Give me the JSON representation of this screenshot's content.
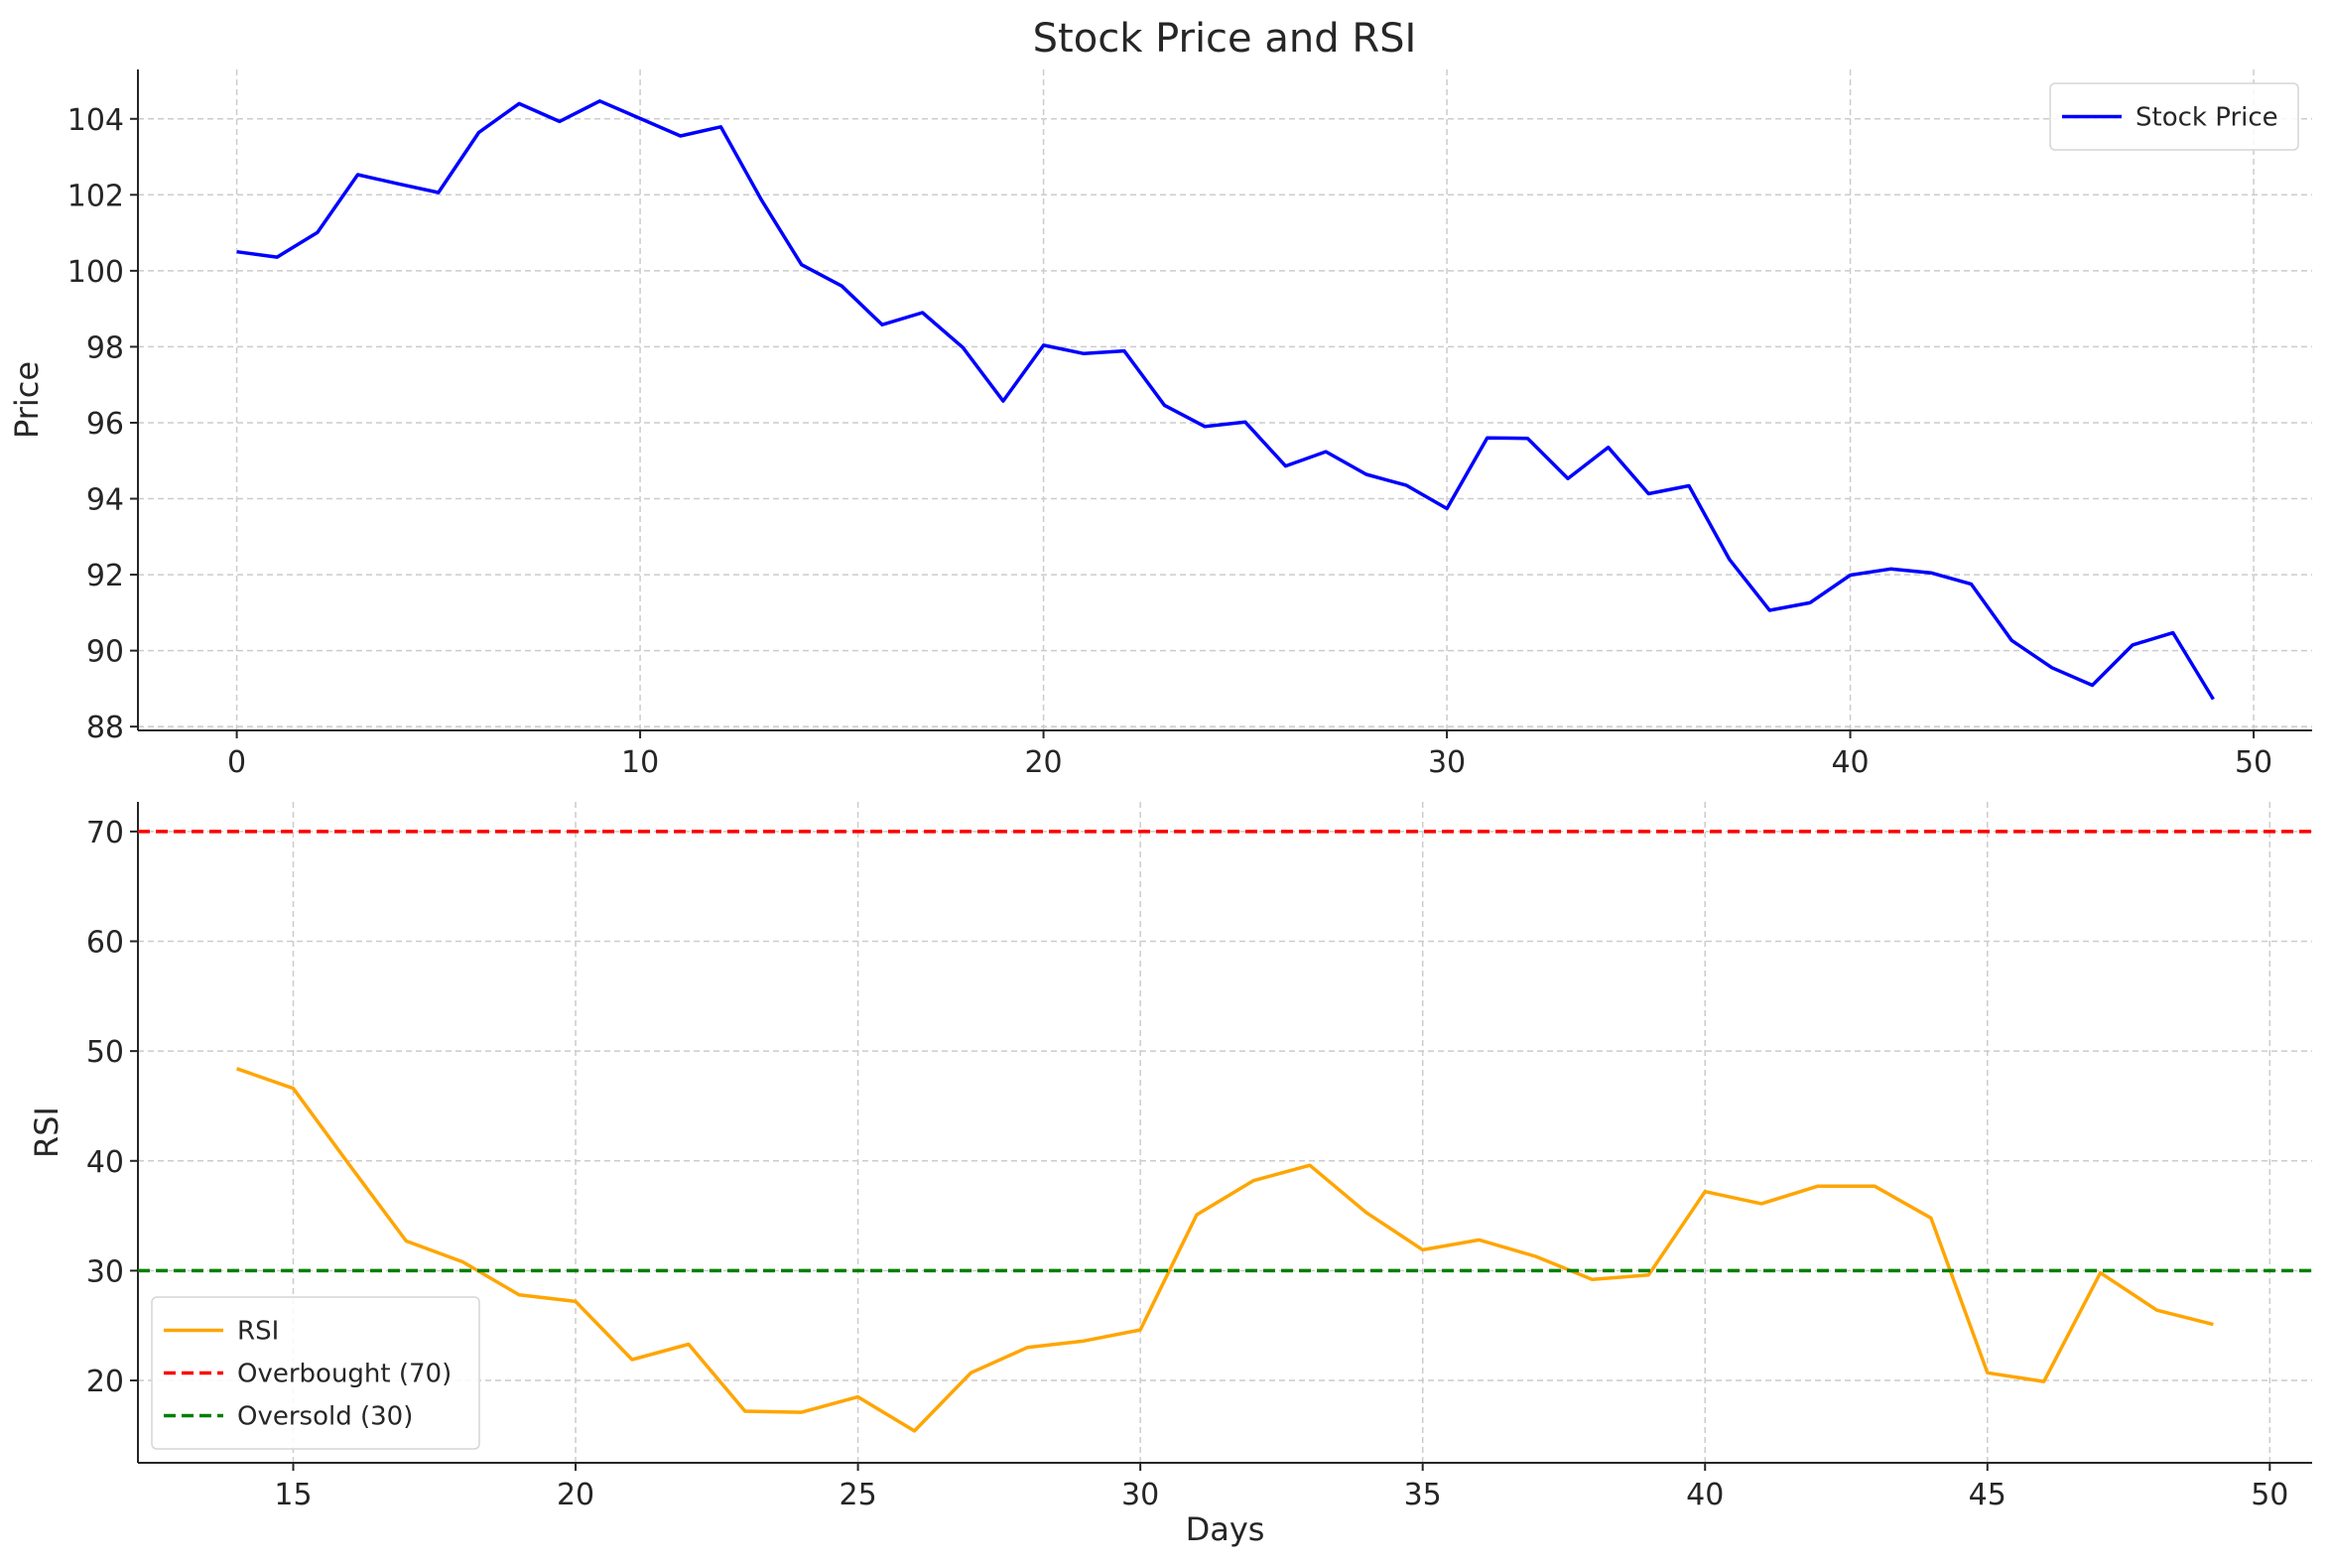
{
  "title": "Stock Price and RSI",
  "chart_data": [
    {
      "type": "line",
      "title": "Stock Price and RSI",
      "xlabel": "",
      "ylabel": "Price",
      "xlim": [
        -2.45,
        51.45
      ],
      "ylim": [
        87.9,
        105.3
      ],
      "x_ticks": [
        0,
        10,
        20,
        30,
        40,
        50
      ],
      "y_ticks": [
        88,
        90,
        92,
        94,
        96,
        98,
        100,
        102,
        104
      ],
      "grid": true,
      "legend_position": "top-right",
      "series": [
        {
          "name": "Stock Price",
          "color": "#0000ff",
          "x": [
            0,
            1,
            2,
            3,
            4,
            5,
            6,
            7,
            8,
            9,
            10,
            11,
            12,
            13,
            14,
            15,
            16,
            17,
            18,
            19,
            20,
            21,
            22,
            23,
            24,
            25,
            26,
            27,
            28,
            29,
            30,
            31,
            32,
            33,
            34,
            35,
            36,
            37,
            38,
            39,
            40,
            41,
            42,
            43,
            44,
            45,
            46,
            47,
            48,
            49
          ],
          "values": [
            100.5,
            100.36,
            101.01,
            102.53,
            102.29,
            102.06,
            103.64,
            104.4,
            103.93,
            104.47,
            104.01,
            103.55,
            103.79,
            101.88,
            100.16,
            99.6,
            98.58,
            98.9,
            97.98,
            96.57,
            98.04,
            97.82,
            97.89,
            96.46,
            95.9,
            96.02,
            94.86,
            95.24,
            94.64,
            94.35,
            93.74,
            95.6,
            95.59,
            94.53,
            95.35,
            94.13,
            94.34,
            92.41,
            91.06,
            91.26,
            91.99,
            92.15,
            92.05,
            91.75,
            90.27,
            89.55,
            89.09,
            90.15,
            90.47,
            88.72
          ]
        }
      ]
    },
    {
      "type": "line",
      "xlabel": "Days",
      "ylabel": "RSI",
      "xlim": [
        12.25,
        50.75
      ],
      "ylim": [
        12.5,
        72.7
      ],
      "x_ticks": [
        15,
        20,
        25,
        30,
        35,
        40,
        45,
        50
      ],
      "y_ticks": [
        20,
        30,
        40,
        50,
        60,
        70
      ],
      "grid": true,
      "legend_position": "bottom-left",
      "series": [
        {
          "name": "RSI",
          "color": "#ffa500",
          "x": [
            14,
            15,
            16,
            17,
            18,
            19,
            20,
            21,
            22,
            23,
            24,
            25,
            26,
            27,
            28,
            29,
            30,
            31,
            32,
            33,
            34,
            35,
            36,
            37,
            38,
            39,
            40,
            41,
            42,
            43,
            44,
            45,
            46,
            47,
            48,
            49
          ],
          "values": [
            48.4,
            46.6,
            39.6,
            32.7,
            30.8,
            27.8,
            27.2,
            21.9,
            23.3,
            17.2,
            17.1,
            18.5,
            15.4,
            20.7,
            23.0,
            23.6,
            24.6,
            35.1,
            38.2,
            39.6,
            35.3,
            31.9,
            32.8,
            31.3,
            29.2,
            29.6,
            37.2,
            36.1,
            37.7,
            37.7,
            34.8,
            20.7,
            19.9,
            29.8,
            26.4,
            25.1
          ]
        },
        {
          "name": "Overbought (70)",
          "color": "#ff0000",
          "style": "dashed",
          "y": 70
        },
        {
          "name": "Oversold (30)",
          "color": "#008000",
          "style": "dashed",
          "y": 30
        }
      ]
    }
  ],
  "axis_color": "#262626",
  "grid_color": "#cccccc",
  "text_color": "#262626"
}
